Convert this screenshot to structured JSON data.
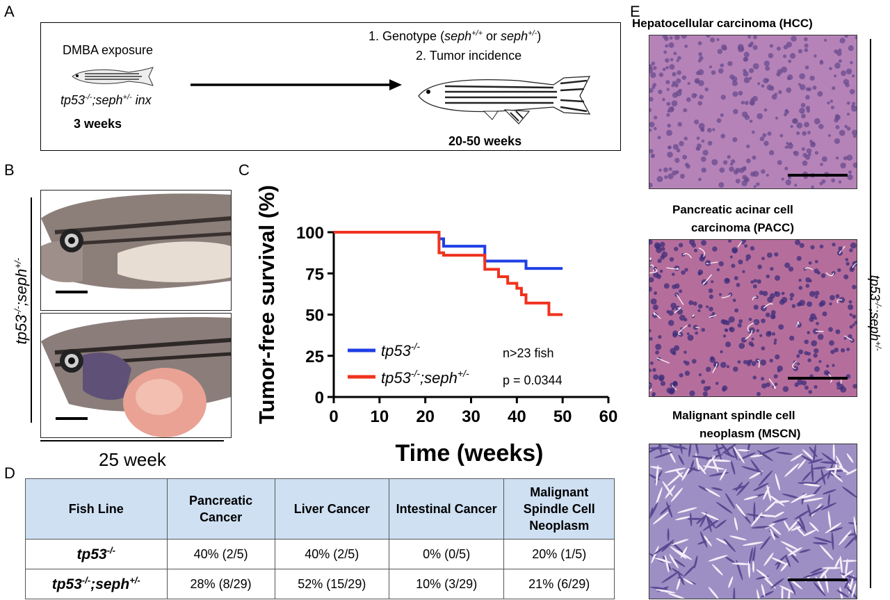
{
  "panel_labels": {
    "a": "A",
    "b": "B",
    "c": "C",
    "d": "D",
    "e": "E"
  },
  "panelA": {
    "left_title": "DMBA exposure",
    "left_genotype": "tp53",
    "left_genotype_sup": "-/-",
    "left_genotype_sep": ";seph",
    "left_genotype_sup2": "+/-",
    "left_genotype_tail": " inx",
    "left_age": "3 weeks",
    "right_line1_a": "1. Genotype (",
    "right_line1_b": "seph",
    "right_line1_sup1": "+/+",
    "right_line1_c": " or ",
    "right_line1_d": "seph",
    "right_line1_sup2": "+/-",
    "right_line1_e": ")",
    "right_line2": "2. Tumor incidence",
    "right_age": "20-50 weeks"
  },
  "panelB": {
    "side_label": "tp53",
    "side_sup": "-/-",
    "side_sep": ";seph",
    "side_sup2": "+/-",
    "bottom_label": "25 week"
  },
  "chart_data": {
    "type": "line",
    "chart_subtype": "kaplan-meier step",
    "xlabel": "Time (weeks)",
    "ylabel": "Tumor-free survival (%)",
    "xlim": [
      0,
      60
    ],
    "ylim": [
      0,
      100
    ],
    "xticks": [
      0,
      10,
      20,
      30,
      40,
      50,
      60
    ],
    "yticks": [
      0,
      25,
      50,
      75,
      100
    ],
    "series": [
      {
        "name": "tp53-/-",
        "color": "#1f3fe6",
        "x": [
          0,
          22,
          23,
          24,
          33,
          42,
          50
        ],
        "y": [
          100,
          100,
          96,
          91.5,
          82.5,
          78,
          78
        ]
      },
      {
        "name": "tp53-/-;seph+/-",
        "color": "#f0321e",
        "x": [
          0,
          22,
          23,
          24,
          33,
          34,
          36,
          38,
          40,
          41,
          42,
          43,
          45,
          47,
          48,
          50
        ],
        "y": [
          100,
          100,
          87.5,
          86,
          77.5,
          77.5,
          73,
          69,
          66,
          62,
          57,
          57,
          57,
          50,
          50,
          50
        ]
      }
    ],
    "annotations": [
      "n>23 fish",
      "p = 0.0344"
    ],
    "legend_position": "bottom-left"
  },
  "panelC_legend": {
    "s1_base": "tp53",
    "s1_sup": "-/-",
    "s2_base": "tp53",
    "s2_sup": "-/-",
    "s2_sep": ";seph",
    "s2_sup2": "+/-",
    "note1": "n>23 fish",
    "note2": "p = 0.0344"
  },
  "table": {
    "headers": [
      "Fish Line",
      "Pancreatic Cancer",
      "Liver Cancer",
      "Intestinal Cancer",
      "Malignant Spindle Cell Neoplasm"
    ],
    "rows": [
      {
        "label_base": "tp53",
        "label_sup": "-/-",
        "label_sep": "",
        "label_sup2": "",
        "cells": [
          "40% (2/5)",
          "40% (2/5)",
          "0% (0/5)",
          "20% (1/5)"
        ]
      },
      {
        "label_base": "tp53",
        "label_sup": "-/-",
        "label_sep": ";seph",
        "label_sup2": "+/-",
        "cells": [
          "28% (8/29)",
          "52% (15/29)",
          "10% (3/29)",
          "21% (6/29)"
        ]
      }
    ]
  },
  "panelE": {
    "hcc_title": "Hepatocellular carcinoma (HCC)",
    "pacc_title_1": "Pancreatic acinar cell",
    "pacc_title_2": "carcinoma (PACC)",
    "mscn_title_1": "Malignant spindle cell",
    "mscn_title_2": "neoplasm (MSCN)",
    "side_label": "tp53",
    "side_sup": "-/-",
    "side_sep": ";seph",
    "side_sup2": "+/-"
  },
  "colors": {
    "blue_series": "#1f3fe6",
    "red_series": "#f0321e",
    "table_header_bg": "#cfe0f3",
    "histo_purple": "#a86aa8"
  }
}
